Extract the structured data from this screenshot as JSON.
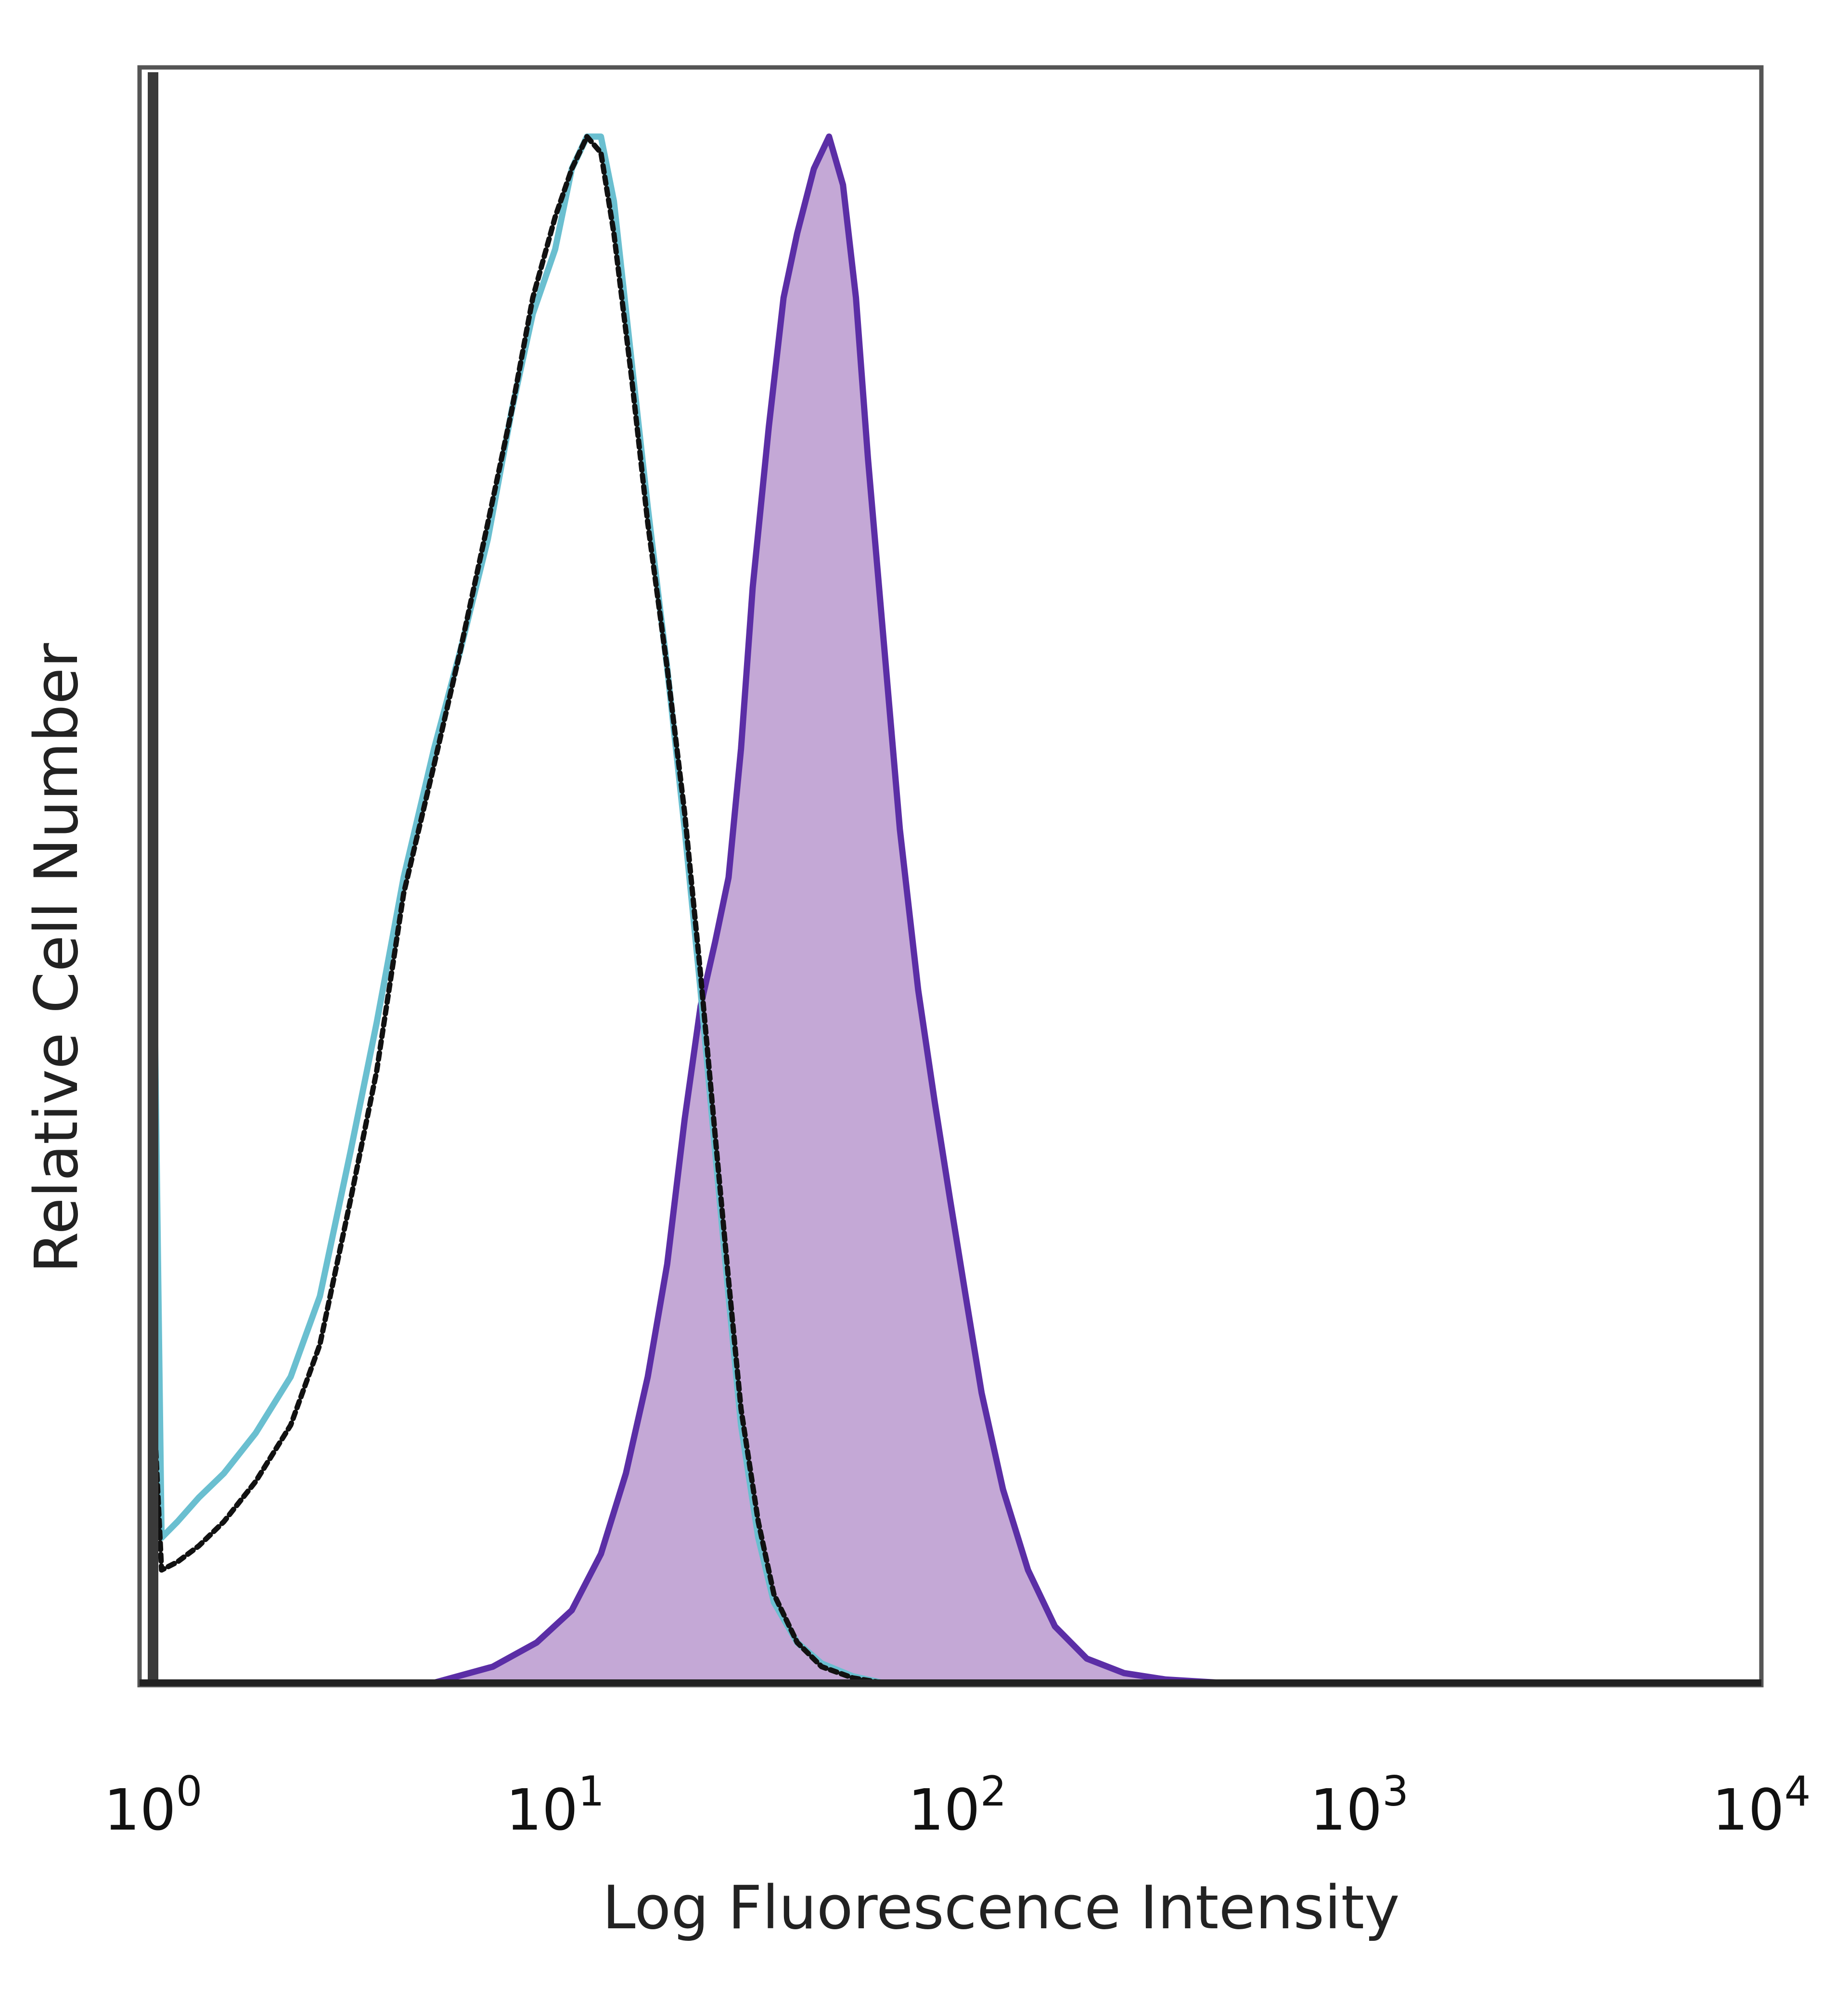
{
  "chart_data": {
    "type": "area",
    "xlabel": "Log Fluorescence Intensity",
    "ylabel": "Relative Cell Number",
    "x_scale": "log",
    "xlim": [
      1,
      10000
    ],
    "ylim": [
      0,
      100
    ],
    "x_ticks": [
      {
        "base": "10",
        "exp": "0"
      },
      {
        "base": "10",
        "exp": "1"
      },
      {
        "base": "10",
        "exp": "2"
      },
      {
        "base": "10",
        "exp": "3"
      },
      {
        "base": "10",
        "exp": "4"
      }
    ],
    "grid": false,
    "legend": "none",
    "series": [
      {
        "color": "#6abfd0",
        "style": "solid",
        "fill": false,
        "x": [
          1.0,
          1.05,
          1.15,
          1.3,
          1.5,
          1.8,
          2.2,
          2.6,
          3.1,
          3.6,
          4.2,
          5.0,
          5.8,
          6.8,
          7.8,
          8.8,
          10.0,
          11.0,
          12.0,
          13.0,
          14.0,
          15.5,
          17.0,
          19.0,
          21.0,
          23.0,
          25.0,
          27.0,
          29.0,
          32.0,
          35.0,
          40.0,
          46.0,
          55.0,
          65.0
        ],
        "y": [
          50.0,
          9.0,
          10.0,
          11.5,
          13.0,
          15.5,
          19.0,
          24.0,
          33.0,
          41.0,
          50.0,
          58.0,
          64.0,
          71.0,
          79.0,
          85.0,
          89.0,
          94.0,
          96.0,
          96.0,
          92.0,
          82.0,
          73.0,
          63.0,
          53.0,
          43.0,
          33.0,
          24.0,
          16.0,
          9.0,
          5.0,
          2.5,
          1.2,
          0.4,
          0.0
        ]
      },
      {
        "color": "#111111",
        "style": "dotted",
        "fill": false,
        "x": [
          1.0,
          1.05,
          1.15,
          1.3,
          1.5,
          1.8,
          2.2,
          2.6,
          3.1,
          3.6,
          4.2,
          5.0,
          5.8,
          6.8,
          7.8,
          8.8,
          10.0,
          11.0,
          12.0,
          13.0,
          14.0,
          15.5,
          17.0,
          19.0,
          21.0,
          23.0,
          25.0,
          27.0,
          29.0,
          32.0,
          35.0,
          40.0,
          46.0,
          55.0,
          65.0
        ],
        "y": [
          18.0,
          7.0,
          7.5,
          8.5,
          10.0,
          12.5,
          16.0,
          21.0,
          30.0,
          38.0,
          49.0,
          57.0,
          64.0,
          72.0,
          79.0,
          86.0,
          91.0,
          94.0,
          96.0,
          95.0,
          90.0,
          81.0,
          72.0,
          63.0,
          54.0,
          44.0,
          34.0,
          25.0,
          17.0,
          10.0,
          5.5,
          2.5,
          1.0,
          0.3,
          0.0
        ]
      },
      {
        "color": "#5b2ea6",
        "style": "solid",
        "fill": true,
        "fill_color": "#c4a8d6",
        "x": [
          5.0,
          7.0,
          9.0,
          11.0,
          13.0,
          15.0,
          17.0,
          19.0,
          21.0,
          23.0,
          25.0,
          27.0,
          29.0,
          31.0,
          34.0,
          37.0,
          40.0,
          44.0,
          48.0,
          52.0,
          56.0,
          60.0,
          66.0,
          72.0,
          80.0,
          88.0,
          96.0,
          105.0,
          115.0,
          130.0,
          150.0,
          175.0,
          210.0,
          260.0,
          330.0,
          450.0
        ],
        "y": [
          0.0,
          1.0,
          2.5,
          4.5,
          8.0,
          13.0,
          19.0,
          26.0,
          35.0,
          42.0,
          46.0,
          50.0,
          58.0,
          68.0,
          78.0,
          86.0,
          90.0,
          94.0,
          96.0,
          93.0,
          86.0,
          76.0,
          64.0,
          53.0,
          43.0,
          36.0,
          30.0,
          24.0,
          18.0,
          12.0,
          7.0,
          3.5,
          1.5,
          0.6,
          0.2,
          0.0
        ]
      }
    ]
  }
}
